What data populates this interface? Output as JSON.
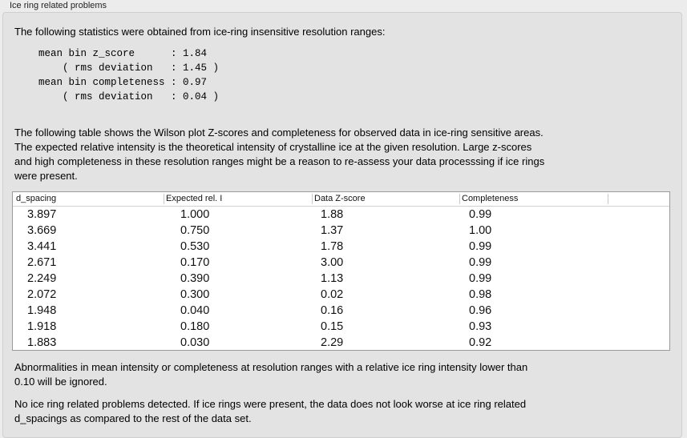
{
  "group_title": "Ice ring related problems",
  "intro": "The following statistics were obtained from ice-ring insensitive resolution ranges:",
  "stats_lines": [
    "mean bin z_score      : 1.84",
    "    ( rms deviation   : 1.45 )",
    "mean bin completeness : 0.97",
    "    ( rms deviation   : 0.04 )"
  ],
  "table_description": [
    "The following table shows the Wilson plot Z-scores and completeness for observed data in ice-ring sensitive areas.",
    "The expected relative intensity is the theoretical intensity of crystalline ice at the given resolution. Large z-scores",
    "and high completeness in these resolution ranges might be a reason to re-assess your data processsing if ice rings",
    "were present."
  ],
  "table": {
    "columns": [
      "d_spacing",
      "Expected rel. I",
      "Data Z-score",
      "Completeness"
    ],
    "rows": [
      [
        "3.897",
        "1.000",
        "1.88",
        "0.99"
      ],
      [
        "3.669",
        "0.750",
        "1.37",
        "1.00"
      ],
      [
        "3.441",
        "0.530",
        "1.78",
        "0.99"
      ],
      [
        "2.671",
        "0.170",
        "3.00",
        "0.99"
      ],
      [
        "2.249",
        "0.390",
        "1.13",
        "0.99"
      ],
      [
        "2.072",
        "0.300",
        "0.02",
        "0.98"
      ],
      [
        "1.948",
        "0.040",
        "0.16",
        "0.96"
      ],
      [
        "1.918",
        "0.180",
        "0.15",
        "0.93"
      ],
      [
        "1.883",
        "0.030",
        "2.29",
        "0.92"
      ]
    ]
  },
  "note": [
    "Abnormalities in mean intensity or completeness at resolution ranges with a relative ice ring intensity lower than",
    "0.10 will be ignored."
  ],
  "conclusion": [
    "No ice ring related problems detected. If ice rings were present, the data does not look worse at ice ring related",
    "d_spacings as compared to the rest of the data set."
  ]
}
